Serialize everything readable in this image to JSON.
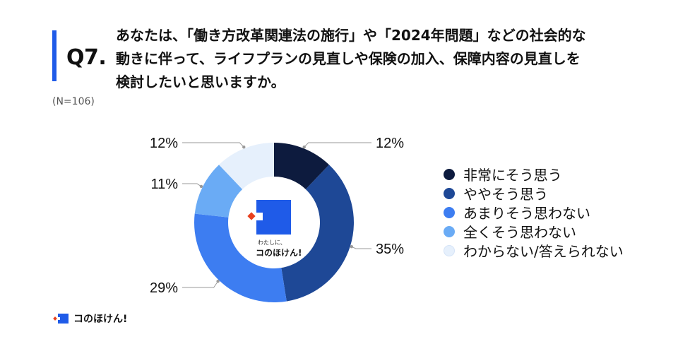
{
  "header": {
    "q_label": "Q7.",
    "question_lines": [
      "あなたは、「働き方改革関連法の施行」や「2024年問題」などの社会的な",
      "動きに伴って、ライフプランの見直しや保険の加入、保障内容の見直しを",
      "検討したいと思いますか。"
    ],
    "sample_size": "(N=106)"
  },
  "brand": {
    "tagline": "わたしに、",
    "name": "コのほけん!",
    "footer_name": "コのほけん!",
    "logo_blue": "#1f5be8",
    "logo_red": "#e8401f"
  },
  "colors": {
    "accent": "#1f5be8",
    "leader_line": "#9a9a9a"
  },
  "chart_data": {
    "type": "pie",
    "donut": true,
    "categories": [
      "非常にそう思う",
      "ややそう思う",
      "あまりそう思わない",
      "全くそう思わない",
      "わからない/答えられない"
    ],
    "values": [
      12,
      35,
      29,
      11,
      12
    ],
    "value_labels": [
      "12%",
      "35%",
      "29%",
      "11%",
      "12%"
    ],
    "colors": [
      "#0d1b3e",
      "#1e4896",
      "#3d7df1",
      "#6aabf5",
      "#e6f0fc"
    ],
    "legend_position": "right",
    "title": ""
  }
}
